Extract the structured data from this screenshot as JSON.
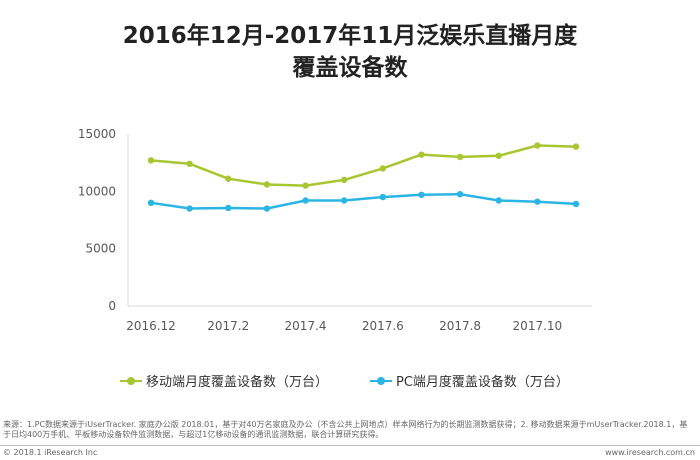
{
  "chart_data": {
    "type": "line",
    "title_line1": "2016年12月-2017年11月泛娱乐直播月度",
    "title_line2": "覆盖设备数",
    "categories": [
      "2016.12",
      "2017.1",
      "2017.2",
      "2017.3",
      "2017.4",
      "2017.5",
      "2017.6",
      "2017.7",
      "2017.8",
      "2017.9",
      "2017.10",
      "2017.11"
    ],
    "x_tick_labels": [
      "2016.12",
      "",
      "2017.2",
      "",
      "2017.4",
      "",
      "2017.6",
      "",
      "2017.8",
      "",
      "2017.10",
      ""
    ],
    "ylim": [
      0,
      15000
    ],
    "y_ticks": [
      0,
      5000,
      10000,
      15000
    ],
    "grid": false,
    "legend_position": "bottom",
    "series": [
      {
        "name": "移动端月度覆盖设备数（万台）",
        "color": "#a8c632",
        "values": [
          12700,
          12400,
          11100,
          10600,
          10500,
          11000,
          12000,
          13200,
          13000,
          13100,
          14000,
          13900
        ]
      },
      {
        "name": "PC端月度覆盖设备数（万台）",
        "color": "#2bb5e4",
        "values": [
          9000,
          8500,
          8550,
          8500,
          9200,
          9200,
          9500,
          9700,
          9750,
          9200,
          9100,
          8900
        ]
      }
    ]
  },
  "source_note": "来源：1.PC数据来源于iUserTracker. 家庭办公版 2018.01，基于对40万名家庭及办公（不含公共上网地点）样本网络行为的长期监测数据获得；2. 移动数据来源于mUserTracker.2018.1，基于日均400万手机、平板移动设备软件监测数据，与超过1亿移动设备的通讯监测数据，联合计算研究获得。",
  "footer": {
    "copyright": "© 2018.1 iResearch Inc",
    "website": "www.iresearch.com.cn"
  }
}
